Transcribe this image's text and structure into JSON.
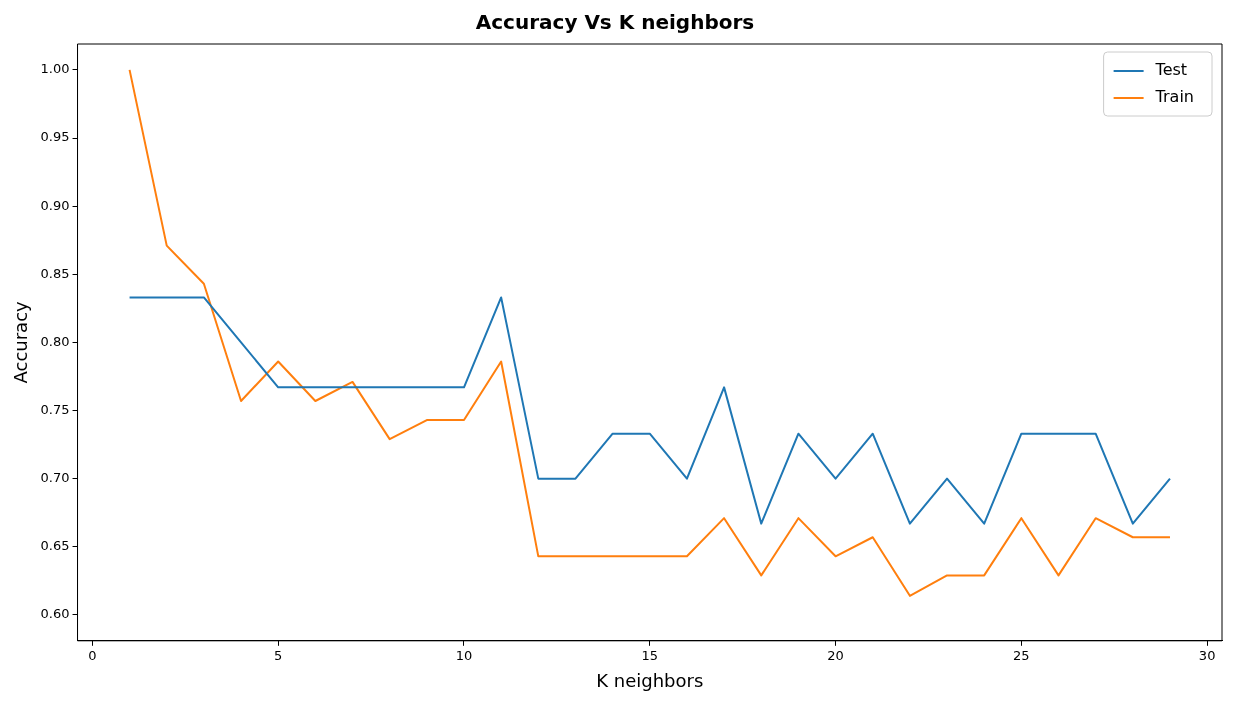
{
  "chart_data": {
    "type": "line",
    "title": "Accuracy Vs K neighbors",
    "xlabel": "K neighbors",
    "ylabel": "Accuracy",
    "x": [
      1,
      2,
      3,
      4,
      5,
      6,
      7,
      8,
      9,
      10,
      11,
      12,
      13,
      14,
      15,
      16,
      17,
      18,
      19,
      20,
      21,
      22,
      23,
      24,
      25,
      26,
      27,
      28,
      29
    ],
    "series": [
      {
        "name": "Test",
        "color": "#1f77b4",
        "values": [
          0.833,
          0.833,
          0.833,
          0.8,
          0.767,
          0.767,
          0.767,
          0.767,
          0.767,
          0.767,
          0.833,
          0.7,
          0.7,
          0.733,
          0.733,
          0.7,
          0.767,
          0.667,
          0.733,
          0.7,
          0.733,
          0.667,
          0.7,
          0.667,
          0.733,
          0.733,
          0.733,
          0.667,
          0.7
        ]
      },
      {
        "name": "Train",
        "color": "#ff7f0e",
        "values": [
          1.0,
          0.871,
          0.843,
          0.757,
          0.786,
          0.757,
          0.771,
          0.729,
          0.743,
          0.743,
          0.786,
          0.643,
          0.643,
          0.643,
          0.643,
          0.643,
          0.671,
          0.629,
          0.671,
          0.643,
          0.657,
          0.614,
          0.629,
          0.629,
          0.671,
          0.629,
          0.671,
          0.657,
          0.657
        ]
      }
    ],
    "xlim": [
      -0.4,
      30.4
    ],
    "xticks": [
      0,
      5,
      10,
      15,
      20,
      25,
      30
    ],
    "ylim": [
      0.581,
      1.019
    ],
    "yticks": [
      {
        "value": 0.6,
        "label": "0.60"
      },
      0.65,
      {
        "value": 0.7,
        "label": "0.70"
      },
      0.75,
      {
        "value": 0.8,
        "label": "0.80"
      },
      0.85,
      {
        "value": 0.9,
        "label": "0.90"
      },
      0.95,
      {
        "value": 1.0,
        "label": "1.00"
      }
    ],
    "legend": "top right",
    "grid": false,
    "marker": "none",
    "line_style": "solid"
  }
}
